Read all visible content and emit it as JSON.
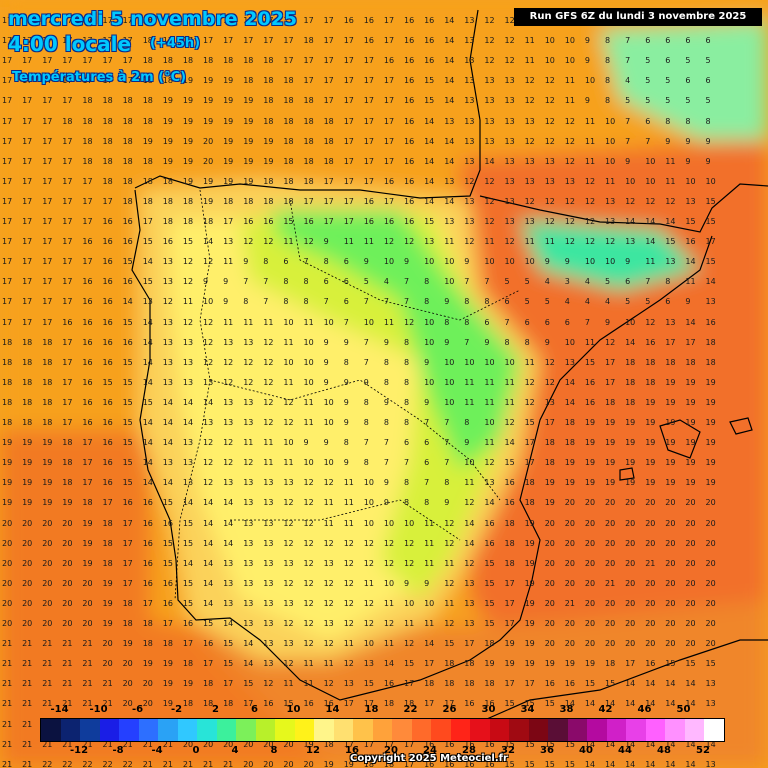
{
  "header": {
    "title_line1": "mercredi 5 novembre 2025",
    "title_line2": "4:00 locale",
    "offset": "(+45h)",
    "variable": "Températures à 2m (°C)",
    "run": "Run GFS 6Z du lundi 3 novembre 2025"
  },
  "footer": {
    "copyright": "Copyright 2025 Meteociel.fr"
  },
  "legend": {
    "colors": [
      "#0b1240",
      "#0c2370",
      "#0f3c9c",
      "#1a1ee6",
      "#2540ff",
      "#2d6fff",
      "#2aa2f5",
      "#30c8ff",
      "#28e4d8",
      "#3cf09c",
      "#7cf05a",
      "#b8f02a",
      "#e6f81c",
      "#fff21a",
      "#fff58a",
      "#ffe070",
      "#ffc24a",
      "#ffa23a",
      "#ff8a3a",
      "#ff6a2a",
      "#ff4a1e",
      "#ff2418",
      "#e6101a",
      "#c80a14",
      "#a00a12",
      "#7c0614",
      "#5a0e36",
      "#8a0a6a",
      "#b40aa0",
      "#d020c8",
      "#e840e8",
      "#ff60ff",
      "#ff90ff",
      "#ffb8ff",
      "#ffffff"
    ],
    "top_labels": [
      "-14",
      "-10",
      "-6",
      "-2",
      "2",
      "6",
      "10",
      "14",
      "18",
      "22",
      "26",
      "30",
      "34",
      "38",
      "42",
      "46",
      "50"
    ],
    "bottom_labels": [
      "-12",
      "-8",
      "-4",
      "0",
      "4",
      "8",
      "12",
      "16",
      "20",
      "24",
      "28",
      "32",
      "36",
      "40",
      "44",
      "48",
      "52"
    ]
  },
  "regions": [
    {
      "name": "sea-west",
      "color": "#f7a11c"
    },
    {
      "name": "sea-southwest",
      "color": "#f27a20"
    },
    {
      "name": "sea-south",
      "color": "#f0862a"
    },
    {
      "name": "mediterranean",
      "color": "#f26f2a"
    },
    {
      "name": "land-warm",
      "color": "#fbd25a"
    },
    {
      "name": "land-mild",
      "color": "#ffef6a"
    },
    {
      "name": "land-cool",
      "color": "#d8f03a"
    },
    {
      "name": "land-cold",
      "color": "#6ef05a"
    },
    {
      "name": "pyrenees",
      "color": "#3de6a0"
    },
    {
      "name": "massif-central",
      "color": "#8aeea0"
    }
  ],
  "grid": {
    "rows": [
      "17 17 17 17 17 17 17 18 17 17 17 17 17 17 17 17 17 16 16 17 16 16 14 13 12 12 11 10 10 7 6 6 6 7 6 6",
      "17 17 17 17 17 17 17 18 17 17 17 17 17 17 17 18 17 17 16 17 16 16 14 13 12 12 11 10 10 9 8 7 6 6 6 6",
      "17 17 17 17 17 17 17 18 18 18 18 18 18 18 17 17 17 17 17 16 16 16 14 13 12 12 11 10 10 9 8 7 5 6 5 5",
      "17 17 17 17 17 17 17 18 18 19 19 19 18 18 18 17 17 17 17 17 16 15 14 13 13 13 12 12 11 10 8 4 5 5 6 6",
      "17 17 17 17 18 18 18 18 19 19 19 19 19 18 18 18 17 17 17 17 16 15 14 13 13 13 12 12 11 9 8 5 5 5 5 5",
      "17 17 17 18 18 18 18 18 19 19 19 19 19 18 18 18 18 17 17 17 16 14 13 13 13 13 13 12 12 11 10 7 6 8 8 8",
      "17 17 17 17 18 18 18 19 19 19 20 19 19 19 18 18 18 17 17 17 16 14 14 13 13 13 12 12 12 11 10 7 7 9 9 9",
      "17 17 17 17 18 18 18 18 19 19 20 19 19 19 18 18 18 17 17 17 16 14 14 13 14 13 13 13 12 11 10 9 10 11 9 9",
      "17 17 17 17 17 18 18 18 18 19 19 19 19 18 18 18 17 17 17 16 16 14 13 12 12 13 13 13 13 12 11 10 10 11 10 10",
      "17 17 17 17 17 17 18 18 18 18 19 18 18 18 18 17 17 17 16 17 16 14 14 13 12 13 12 12 12 12 13 12 12 12 13 15",
      "17 17 17 17 17 16 16 17 18 18 18 17 16 16 15 16 17 17 16 16 16 15 13 13 12 13 13 12 12 12 13 14 14 14 15 15",
      "17 17 17 17 16 16 16 15 16 15 14 13 12 12 11 12 9 11 11 12 12 13 11 12 11 12 11 11 12 12 12 13 14 15 16 17",
      "17 17 17 17 17 16 15 14 13 12 12 11 9 8 6 7 8 6 9 10 9 10 10 9 10 10 10 9 9 10 10 9 11 13 14 15",
      "17 17 17 17 16 16 16 15 13 12 9 9 7 7 8 8 6 6 5 4 7 8 10 7 7 5 5 4 3 4 5 6 7 8 11 14",
      "17 17 17 17 16 16 14 13 12 11 10 9 8 7 8 8 7 6 7 7 7 8 9 8 8 6 5 5 4 4 4 5 5 6 9 13",
      "17 17 17 16 16 16 15 14 13 12 12 11 11 11 10 11 10 7 10 11 12 10 8 8 6 7 6 6 6 7 9 10 12 13 14 16",
      "18 18 18 17 16 16 16 14 13 13 12 13 13 12 11 10 9 9 7 9 8 10 9 7 9 8 8 9 10 11 12 14 16 17 17 18",
      "18 18 18 17 16 16 15 14 13 13 12 12 12 12 10 10 9 8 7 8 8 9 10 10 10 10 11 12 13 15 17 18 18 18 18 18",
      "18 18 18 17 16 15 15 14 13 13 13 12 12 12 11 10 9 9 9 8 8 10 10 11 11 11 12 12 14 16 17 18 18 19 19 19",
      "18 18 18 17 16 16 15 15 14 14 14 13 13 12 12 11 10 9 8 9 8 9 10 11 11 11 12 13 14 16 18 18 19 19 19 19",
      "18 18 18 17 16 16 15 14 14 14 13 13 13 12 12 11 10 9 8 8 8 7 7 8 10 12 15 17 18 19 19 19 19 19 19 19",
      "19 19 19 18 17 16 15 14 14 13 12 12 11 11 10 9 9 8 7 7 6 6 7 9 11 14 17 18 18 19 19 19 19 19 19 19",
      "19 19 19 18 17 16 15 14 13 13 12 12 12 11 11 10 10 9 8 7 7 6 7 10 12 15 17 18 19 19 19 19 19 19 19 19",
      "19 19 19 18 17 16 15 14 14 13 12 13 13 13 13 12 12 11 10 9 8 7 8 11 13 16 18 19 19 19 19 19 19 19 19 19",
      "19 19 19 19 18 17 16 16 15 14 14 14 13 13 12 12 11 11 10 9 8 8 9 12 14 16 18 19 20 20 20 20 20 20 20 20",
      "20 20 20 20 19 18 17 16 16 15 14 14 13 13 12 12 11 11 10 10 10 11 12 14 16 18 19 20 20 20 20 20 20 20 20 20",
      "20 20 20 20 19 18 17 16 15 15 14 14 13 13 12 12 12 12 12 12 12 11 12 14 16 18 19 20 20 20 20 20 20 20 20 20",
      "20 20 20 20 19 18 17 16 15 14 14 13 13 13 13 12 13 12 12 12 12 11 11 12 15 18 19 20 20 20 20 20 21 20 20 20",
      "20 20 20 20 20 19 17 16 16 15 14 13 13 13 12 12 12 12 11 10 9 9 12 13 15 17 19 20 20 20 21 20 20 20 20 20",
      "20 20 20 20 20 19 18 17 16 15 14 13 13 13 13 12 12 12 12 11 10 10 11 13 15 17 19 20 21 20 20 20 20 20 20 20",
      "20 20 20 20 20 19 18 18 17 16 15 14 13 13 12 12 13 12 12 12 11 11 12 13 15 17 19 20 20 20 20 20 20 20 20 20",
      "21 21 21 21 21 20 19 18 18 17 16 15 14 13 13 12 12 11 10 11 12 14 15 17 18 19 19 20 20 20 20 20 20 20 20 20",
      "21 21 21 21 21 20 20 19 19 18 17 15 14 13 12 11 11 12 13 14 15 17 18 18 19 19 19 19 19 19 18 17 16 15 15 15",
      "21 21 21 21 21 21 20 20 19 19 18 17 15 12 11 11 12 13 15 16 17 18 18 18 18 17 17 16 16 15 15 14 14 14 14 13",
      "21 21 21 21 21 21 20 20 19 18 18 18 17 16 15 16 16 17 17 18 18 17 17 16 16 15 15 15 14 14 14 14 14 14 14 13",
      "21 21 21 21 21 21 21 20 20 19 19 19 19 18 18 18 18 18 18 18 17 17 16 16 16 15 15 15 15 14 14 14 14 14 14 14",
      "21 21 21 21 21 21 21 21 21 20 20 20 20 20 20 19 18 17 17 17 17 16 16 16 16 15 15 15 15 14 14 14 14 14 14 14",
      "21 21 22 22 22 22 22 21 21 21 21 21 20 20 20 20 19 19 18 18 17 16 16 16 16 15 15 15 15 14 14 14 14 14 14 13"
    ]
  }
}
